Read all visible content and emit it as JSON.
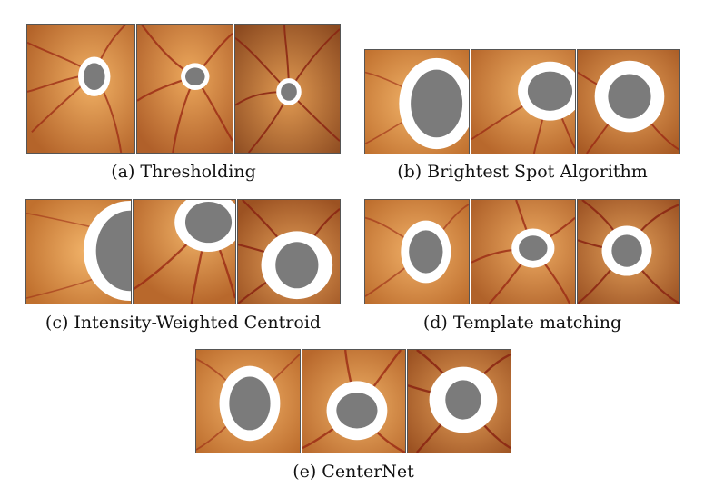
{
  "figure": {
    "panels": [
      {
        "id": "a",
        "caption": "(a) Thresholding",
        "images": [
          {
            "label": "fundus-a1"
          },
          {
            "label": "fundus-a2"
          },
          {
            "label": "fundus-a3"
          }
        ]
      },
      {
        "id": "b",
        "caption": "(b) Brightest Spot Algorithm",
        "images": [
          {
            "label": "fundus-b1"
          },
          {
            "label": "fundus-b2"
          },
          {
            "label": "fundus-b3"
          }
        ]
      },
      {
        "id": "c",
        "caption": "(c) Intensity-Weighted Centroid",
        "images": [
          {
            "label": "fundus-c1"
          },
          {
            "label": "fundus-c2"
          },
          {
            "label": "fundus-c3"
          }
        ]
      },
      {
        "id": "d",
        "caption": "(d) Template matching",
        "images": [
          {
            "label": "fundus-d1"
          },
          {
            "label": "fundus-d2"
          },
          {
            "label": "fundus-d3"
          }
        ]
      },
      {
        "id": "e",
        "caption": "(e) CenterNet",
        "images": [
          {
            "label": "fundus-e1"
          },
          {
            "label": "fundus-e2"
          },
          {
            "label": "fundus-e3"
          }
        ]
      }
    ],
    "colors": {
      "fundus_bright": "#e8a052",
      "fundus_dark": "#a85a22",
      "vessel": "#9b2a14",
      "disc_ring": "#ffffff",
      "cup": "#7b7b7b"
    }
  }
}
